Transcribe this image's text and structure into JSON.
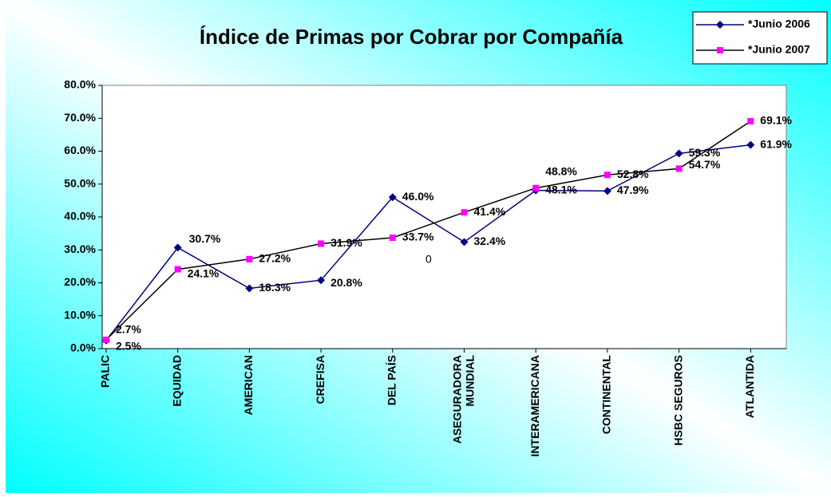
{
  "chart_data": {
    "type": "line",
    "title": "Índice de Primas por Cobrar por Compañía",
    "categories": [
      "PALIC",
      "EQUIDAD",
      "AMERICAN",
      "CREFISA",
      "DEL PAÍS",
      "ASEGURADORA MUNDIAL",
      "INTERAMERICANA",
      "CONTINENTAL",
      "HSBC SEGUROS",
      "ATLANTIDA"
    ],
    "series": [
      {
        "name": "*Junio 2006",
        "color": "#000080",
        "marker_color": "#000080",
        "marker": "diamond",
        "values": [
          2.5,
          30.7,
          18.3,
          20.8,
          46.0,
          32.4,
          48.1,
          47.9,
          59.3,
          61.9
        ],
        "value_labels": [
          "2.5%",
          "30.7%",
          "18.3%",
          "20.8%",
          "46.0%",
          "32.4%",
          "48.1%",
          "47.9%",
          "59.3%",
          "61.9%"
        ]
      },
      {
        "name": "*Junio 2007",
        "color": "#000000",
        "marker_color": "#ff00ff",
        "marker": "square",
        "values": [
          2.7,
          24.1,
          27.2,
          31.9,
          33.7,
          41.4,
          48.8,
          52.8,
          54.7,
          69.1
        ],
        "value_labels": [
          "2.7%",
          "24.1%",
          "27.2%",
          "31.9%",
          "33.7%",
          "41.4%",
          "48.8%",
          "52.8%",
          "54.7%",
          "69.1%"
        ]
      }
    ],
    "annotations": [
      "0"
    ],
    "ylim": [
      0,
      80
    ],
    "yticks": [
      {
        "value": 0,
        "label": "0.0%"
      },
      {
        "value": 10,
        "label": "10.0%"
      },
      {
        "value": 20,
        "label": "20.0%"
      },
      {
        "value": 30,
        "label": "30.0%"
      },
      {
        "value": 40,
        "label": "40.0%"
      },
      {
        "value": 50,
        "label": "50.0%"
      },
      {
        "value": 60,
        "label": "60.0%"
      },
      {
        "value": 70,
        "label": "70.0%"
      },
      {
        "value": 80,
        "label": "80.0%"
      }
    ],
    "legend": "top-right"
  }
}
